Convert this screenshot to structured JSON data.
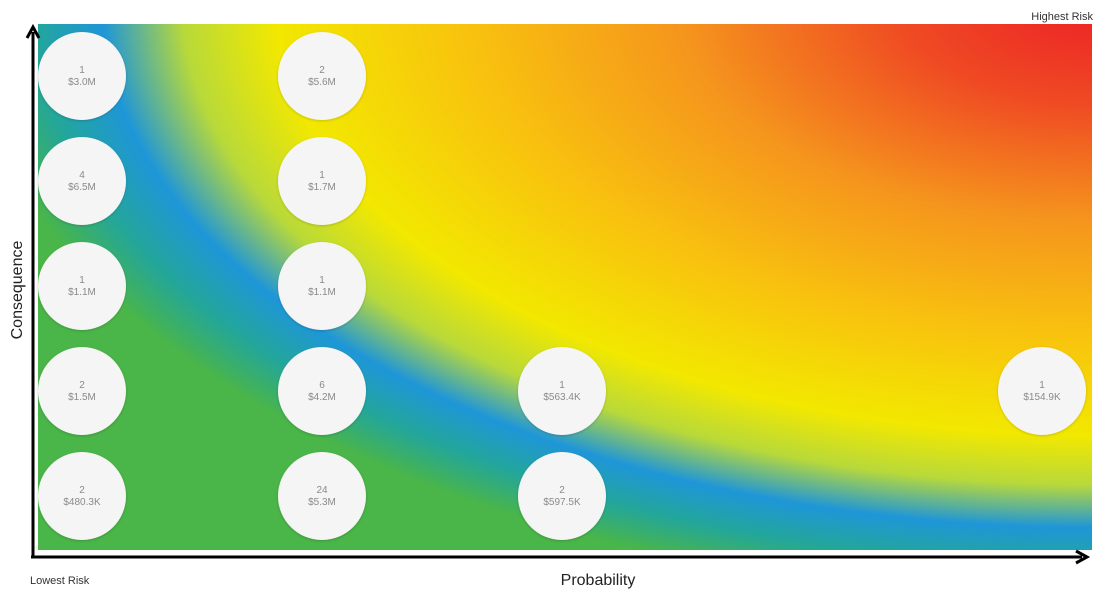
{
  "chart_data": {
    "type": "scatter",
    "title": "",
    "xlabel": "Probability",
    "ylabel": "Consequence",
    "corner_labels": {
      "low": "Lowest Risk",
      "high": "Highest Risk"
    },
    "xlim": [
      0,
      5
    ],
    "ylim": [
      0,
      5
    ],
    "grid": false,
    "background": "risk heat gradient (green to blue to yellow to orange to red)",
    "colors": {
      "low": "#4ab548",
      "band": "#1e96d8",
      "mid": "#f2e800",
      "warm": "#f59a1c",
      "high": "#ec2027",
      "bubble": "#f5f5f5",
      "axis": "#000000"
    },
    "points": [
      {
        "x": 1,
        "y": 5,
        "count": "1",
        "amount": "$3.0M"
      },
      {
        "x": 2,
        "y": 5,
        "count": "2",
        "amount": "$5.6M"
      },
      {
        "x": 1,
        "y": 4,
        "count": "4",
        "amount": "$6.5M"
      },
      {
        "x": 2,
        "y": 4,
        "count": "1",
        "amount": "$1.7M"
      },
      {
        "x": 1,
        "y": 3,
        "count": "1",
        "amount": "$1.1M"
      },
      {
        "x": 2,
        "y": 3,
        "count": "1",
        "amount": "$1.1M"
      },
      {
        "x": 1,
        "y": 2,
        "count": "2",
        "amount": "$1.5M"
      },
      {
        "x": 2,
        "y": 2,
        "count": "6",
        "amount": "$4.2M"
      },
      {
        "x": 3,
        "y": 2,
        "count": "1",
        "amount": "$563.4K"
      },
      {
        "x": 5,
        "y": 2,
        "count": "1",
        "amount": "$154.9K"
      },
      {
        "x": 1,
        "y": 1,
        "count": "2",
        "amount": "$480.3K"
      },
      {
        "x": 2,
        "y": 1,
        "count": "24",
        "amount": "$5.3M"
      },
      {
        "x": 3,
        "y": 1,
        "count": "2",
        "amount": "$597.5K"
      }
    ]
  }
}
